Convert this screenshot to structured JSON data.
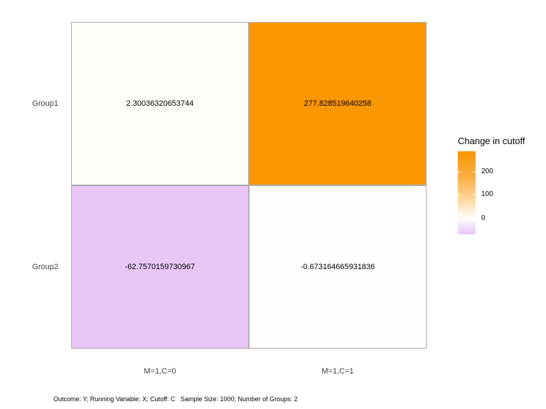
{
  "figure": {
    "background": "#ffffff",
    "tile_border_color": "#adadad"
  },
  "chart_data": {
    "type": "heatmap",
    "title": "",
    "x_categories": [
      "M=1,C=0",
      "M=1,C=1"
    ],
    "y_categories": [
      "Group1",
      "Group2"
    ],
    "series": [
      {
        "name": "Group1",
        "values": [
          2.30036320653744,
          277.828519640258
        ]
      },
      {
        "name": "Group2",
        "values": [
          -62.7570159730967,
          -0.673164665931836
        ]
      }
    ],
    "cells": [
      {
        "row": "Group1",
        "col": "M=1,C=0",
        "value": 2.30036320653744,
        "label": "2.30036320653744",
        "color": "#fffdf7"
      },
      {
        "row": "Group1",
        "col": "M=1,C=1",
        "value": 277.828519640258,
        "label": "277.828519640258",
        "color": "#fb9702"
      },
      {
        "row": "Group2",
        "col": "M=1,C=0",
        "value": -62.7570159730967,
        "label": "-62.7570159730967",
        "color": "#eac6f7"
      },
      {
        "row": "Group2",
        "col": "M=1,C=1",
        "value": -0.673164665931836,
        "label": "-0.673164665931836",
        "color": "#fffeff"
      }
    ],
    "legend": {
      "title": "Change in cutoff",
      "position": "right",
      "ticks": [
        "200",
        "100",
        "0"
      ],
      "value_range": [
        -62.7570159730967,
        277.828519640258
      ],
      "midpoint": 0,
      "gradient_stops": [
        {
          "color": "#fa9502",
          "pos": 0
        },
        {
          "color": "#fbae40",
          "pos": 30
        },
        {
          "color": "#fdd294",
          "pos": 55
        },
        {
          "color": "#ffffff",
          "pos": 81
        },
        {
          "color": "#e9c5f6",
          "pos": 100
        }
      ]
    },
    "grid": false,
    "caption": "Outcome: Y; Running Variable: X; Cutoff: C   Sample Size: 1000; Number of Groups: 2"
  }
}
